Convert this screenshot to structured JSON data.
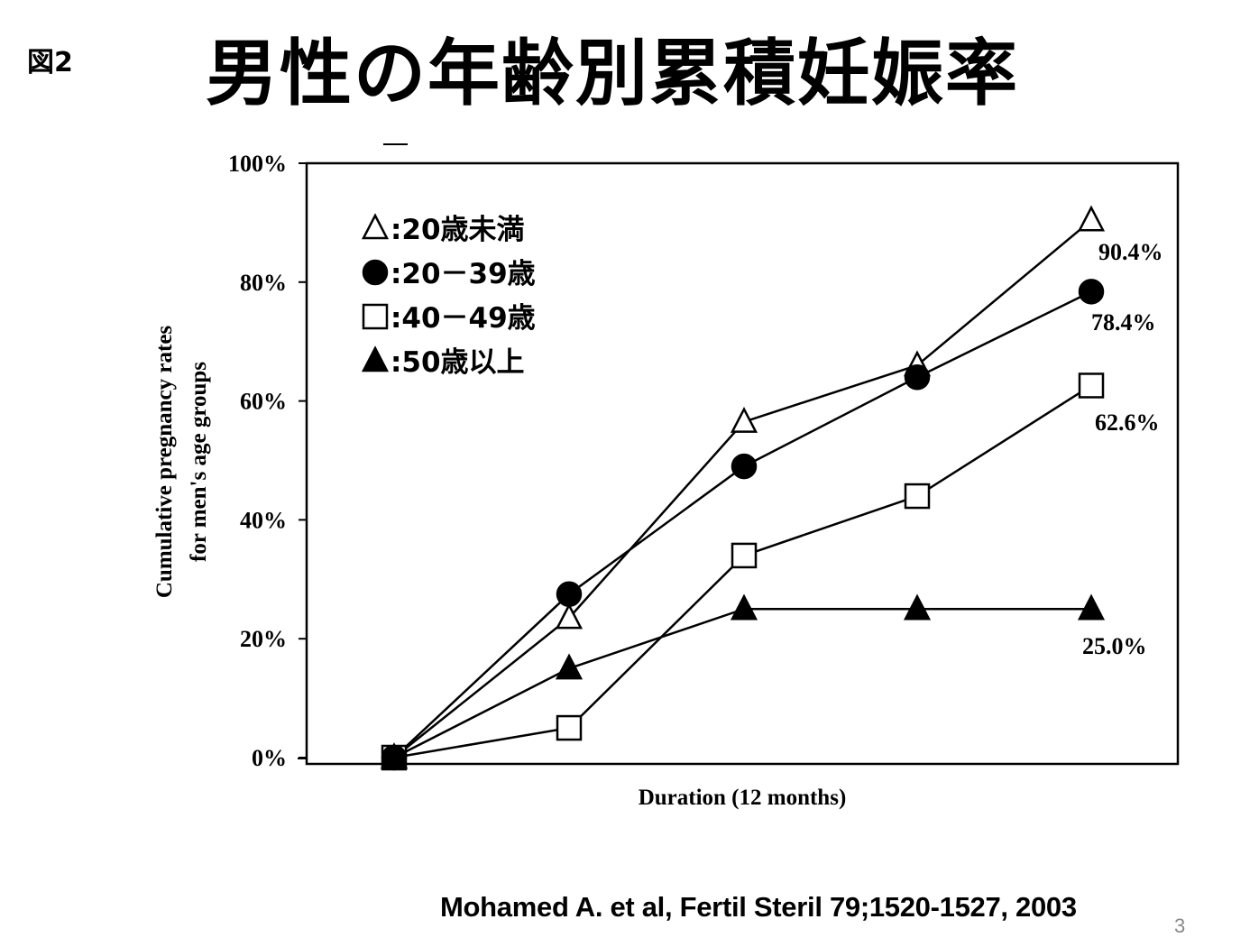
{
  "slide": {
    "figure_label": "図2",
    "title": "男性の年齢別累積妊娠率",
    "citation": "Mohamed A. et al, Fertil Steril 79;1520-1527, 2003",
    "page_number": "3"
  },
  "chart_data": {
    "type": "line",
    "title": "男性の年齢別累積妊娠率",
    "xlabel": "Duration (12 months)",
    "ylabel_lines": [
      "Cumulative pregnancy rates",
      "for men's age groups"
    ],
    "ylim": [
      0,
      100
    ],
    "yticks": [
      "0%",
      "20%",
      "40%",
      "60%",
      "80%",
      "100%"
    ],
    "x": [
      0,
      1,
      2,
      3,
      4
    ],
    "grid": false,
    "legend_position": "upper-left inside",
    "series": [
      {
        "name": "20歳未満",
        "marker": "open-triangle",
        "legend_symbol": "△",
        "values": [
          0,
          23.5,
          56.5,
          66,
          90.4
        ],
        "end_label": "90.4%"
      },
      {
        "name": "20－39歳",
        "marker": "filled-circle",
        "legend_symbol": "●",
        "values": [
          0,
          27.5,
          49,
          64,
          78.4
        ],
        "end_label": "78.4%"
      },
      {
        "name": "40－49歳",
        "marker": "open-square",
        "legend_symbol": "□",
        "values": [
          0,
          5,
          34,
          44,
          62.6
        ],
        "end_label": "62.6%"
      },
      {
        "name": "50歳以上",
        "marker": "filled-triangle",
        "legend_symbol": "▲",
        "values": [
          0,
          15,
          25,
          25,
          25.0
        ],
        "end_label": "25.0%"
      }
    ]
  },
  "legend": {
    "items": [
      {
        "symbol": "△",
        "text": ":20歳未満"
      },
      {
        "symbol": "●",
        "text": ":20－39歳"
      },
      {
        "symbol": "□",
        "text": ":40－49歳"
      },
      {
        "symbol": "▲",
        "text": ":50歳以上"
      }
    ]
  },
  "colors": {
    "ink": "#000000",
    "background": "#ffffff",
    "page_number": "#888888"
  }
}
